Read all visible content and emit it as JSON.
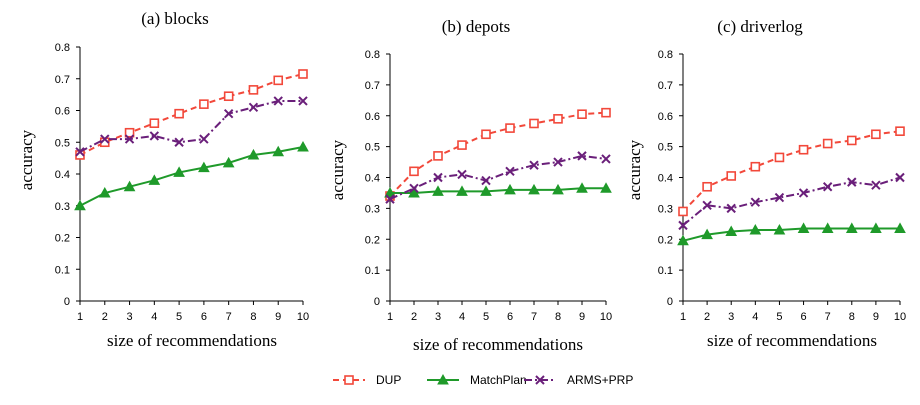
{
  "legend": [
    {
      "name": "DUP",
      "color": "#f2483a",
      "dash": "6,4",
      "marker": "square"
    },
    {
      "name": "MatchPlan",
      "color": "#1f9a2a",
      "dash": "",
      "marker": "triangle"
    },
    {
      "name": "ARMS+PRP",
      "color": "#6a1f7a",
      "dash": "8,3,2,3",
      "marker": "x"
    }
  ],
  "chart_data": [
    {
      "type": "line",
      "title": "(a) blocks",
      "xlabel": "size of recommendations",
      "ylabel": "accuracy",
      "x": [
        1,
        2,
        3,
        4,
        5,
        6,
        7,
        8,
        9,
        10
      ],
      "x_tick_labels": [
        "1",
        "2",
        "3",
        "4",
        "5",
        "6",
        "7",
        "8",
        "9",
        "10"
      ],
      "ylim": [
        0,
        0.8
      ],
      "y_ticks": [
        0,
        0.1,
        0.2,
        0.3,
        0.4,
        0.5,
        0.6,
        0.7,
        0.8
      ],
      "y_tick_labels": [
        "0",
        "0.1",
        "0.2",
        "0.3",
        "0.4",
        "0.5",
        "0.6",
        "0.7",
        "0.8"
      ],
      "series": [
        {
          "name": "DUP",
          "values": [
            0.46,
            0.5,
            0.53,
            0.56,
            0.59,
            0.62,
            0.645,
            0.665,
            0.695,
            0.715
          ]
        },
        {
          "name": "MatchPlan",
          "values": [
            0.3,
            0.34,
            0.36,
            0.38,
            0.405,
            0.42,
            0.435,
            0.46,
            0.47,
            0.485
          ]
        },
        {
          "name": "ARMS+PRP",
          "values": [
            0.47,
            0.51,
            0.51,
            0.52,
            0.5,
            0.51,
            0.59,
            0.61,
            0.63,
            0.63
          ]
        }
      ]
    },
    {
      "type": "line",
      "title": "(b) depots",
      "xlabel": "size of recommendations",
      "ylabel": "accuracy",
      "x": [
        1,
        2,
        3,
        4,
        5,
        6,
        7,
        8,
        9,
        10
      ],
      "x_tick_labels": [
        "1",
        "2",
        "3",
        "4",
        "5",
        "6",
        "7",
        "8",
        "9",
        "10"
      ],
      "ylim": [
        0,
        0.8
      ],
      "y_ticks": [
        0,
        0.1,
        0.2,
        0.3,
        0.4,
        0.5,
        0.6,
        0.7,
        0.8
      ],
      "y_tick_labels": [
        "0",
        "0.1",
        "0.2",
        "0.3",
        "0.4",
        "0.5",
        "0.6",
        "0.7",
        "0.8"
      ],
      "series": [
        {
          "name": "DUP",
          "values": [
            0.34,
            0.42,
            0.47,
            0.505,
            0.54,
            0.56,
            0.575,
            0.59,
            0.605,
            0.61
          ]
        },
        {
          "name": "MatchPlan",
          "values": [
            0.35,
            0.35,
            0.355,
            0.355,
            0.355,
            0.36,
            0.36,
            0.36,
            0.365,
            0.365
          ]
        },
        {
          "name": "ARMS+PRP",
          "values": [
            0.33,
            0.365,
            0.4,
            0.41,
            0.39,
            0.42,
            0.44,
            0.45,
            0.47,
            0.46
          ]
        }
      ]
    },
    {
      "type": "line",
      "title": "(c) driverlog",
      "xlabel": "size of recommendations",
      "ylabel": "accuracy",
      "x": [
        1,
        2,
        3,
        4,
        5,
        6,
        7,
        8,
        9,
        10
      ],
      "x_tick_labels": [
        "1",
        "2",
        "3",
        "4",
        "5",
        "6",
        "7",
        "8",
        "9",
        "10"
      ],
      "ylim": [
        0,
        0.8
      ],
      "y_ticks": [
        0,
        0.1,
        0.2,
        0.3,
        0.4,
        0.5,
        0.6,
        0.7,
        0.8
      ],
      "y_tick_labels": [
        "0",
        "0.1",
        "0.2",
        "0.3",
        "0.4",
        "0.5",
        "0.6",
        "0.7",
        "0.8"
      ],
      "series": [
        {
          "name": "DUP",
          "values": [
            0.29,
            0.37,
            0.405,
            0.435,
            0.465,
            0.49,
            0.51,
            0.52,
            0.54,
            0.55
          ]
        },
        {
          "name": "MatchPlan",
          "values": [
            0.195,
            0.215,
            0.225,
            0.23,
            0.23,
            0.235,
            0.235,
            0.235,
            0.235,
            0.235
          ]
        },
        {
          "name": "ARMS+PRP",
          "values": [
            0.245,
            0.31,
            0.3,
            0.32,
            0.335,
            0.35,
            0.37,
            0.385,
            0.375,
            0.4
          ]
        }
      ]
    }
  ]
}
